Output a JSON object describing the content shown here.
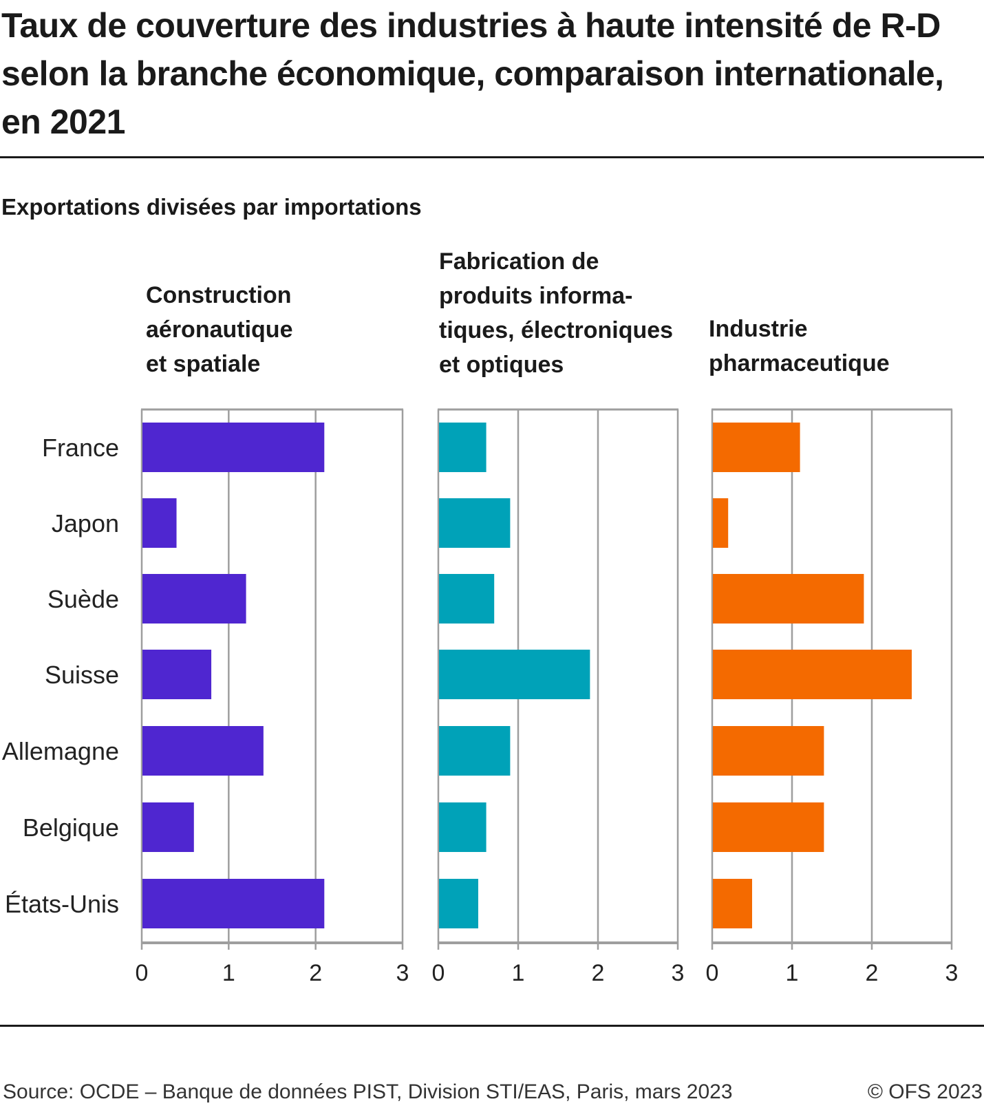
{
  "chart_data": {
    "type": "bar",
    "orientation": "horizontal",
    "title": "Taux de couverture des industries à haute intensité de R-D selon la branche économique, comparaison internationale, en 2021",
    "subtitle": "Exportations divisées par importations",
    "categories": [
      "France",
      "Japon",
      "Suède",
      "Suisse",
      "Allemagne",
      "Belgique",
      "États-Unis"
    ],
    "xlim": [
      0,
      3
    ],
    "xticks": [
      "0",
      "1",
      "2",
      "3"
    ],
    "grid": true,
    "panels": [
      {
        "name": "Construction aéronautique et spatiale",
        "title_lines": [
          "Construction",
          "aéronautique",
          "et spatiale"
        ],
        "color": "#4f26d0",
        "values": [
          2.1,
          0.4,
          1.2,
          0.8,
          1.4,
          0.6,
          2.1
        ]
      },
      {
        "name": "Fabrication de produits informatiques, électroniques et optiques",
        "title_lines": [
          "Fabrication de",
          "produits informa-",
          "tiques, électroniques",
          "et optiques"
        ],
        "color": "#00a2b8",
        "values": [
          0.6,
          0.9,
          0.7,
          1.9,
          0.9,
          0.6,
          0.5
        ]
      },
      {
        "name": "Industrie pharmaceutique",
        "title_lines": [
          "Industrie",
          "pharmaceutique"
        ],
        "color": "#f46a00",
        "values": [
          1.1,
          0.2,
          1.9,
          2.5,
          1.4,
          1.4,
          0.5
        ]
      }
    ]
  },
  "footer": {
    "source": "Source: OCDE – Banque de données PIST, Division STI/EAS, Paris, mars 2023",
    "copyright": "© OFS 2023"
  }
}
